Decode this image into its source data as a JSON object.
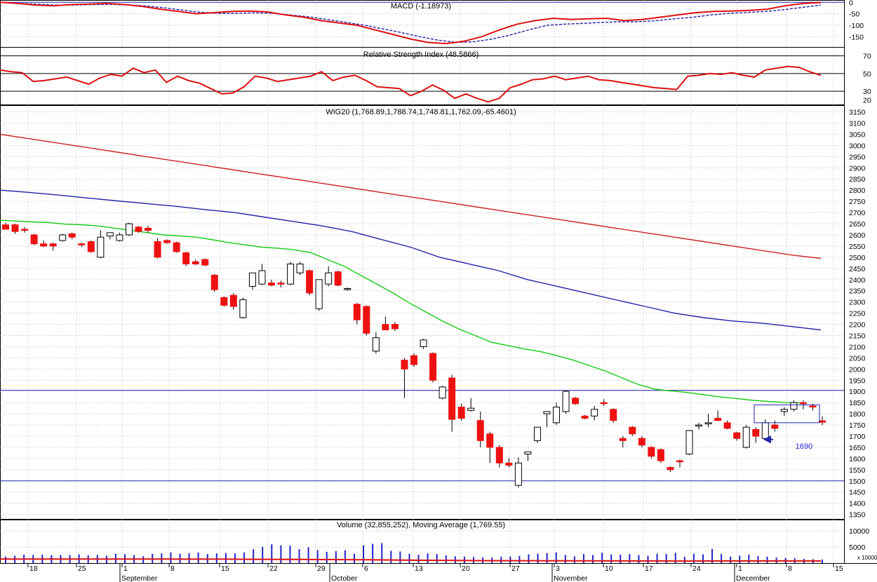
{
  "headers": {
    "macd": "MACD (-1.18973)",
    "rsi": "Relative Strength Index (48.5866)",
    "price": "WIG20 (1,768.89,1,788.74,1,748.81,1,762.09,-65.4601)",
    "volume": "Volume (32,855,252), Moving Average (1,769.55)"
  },
  "annotation_1690": "1690",
  "volume_unit": "x 10000",
  "colors": {
    "up": "#000000",
    "down": "#ee1111",
    "ma_short": "#11cc11",
    "ma_mid": "#2222aa",
    "ma_long": "#cc2222",
    "macd": "#dd1111",
    "signal": "#2222aa",
    "rsi": "#dd1111",
    "hline": "#2222aa",
    "volume": "#2222cc",
    "vol_avg": "#dd1111",
    "grid": "#bbbbbb"
  },
  "chart_data": {
    "type": "candlestick",
    "x_labels": [
      "18",
      "25",
      "1",
      "8",
      "15",
      "22",
      "29",
      "6",
      "13",
      "20",
      "27",
      "3",
      "10",
      "17",
      "24",
      "1",
      "8",
      "15"
    ],
    "month_labels": [
      "September",
      "October",
      "November",
      "December"
    ],
    "price_ticks": [
      1350,
      1400,
      1450,
      1500,
      1550,
      1600,
      1650,
      1700,
      1750,
      1800,
      1850,
      1900,
      1950,
      2000,
      2050,
      2100,
      2150,
      2200,
      2250,
      2300,
      2350,
      2400,
      2450,
      2500,
      2550,
      2600,
      2650,
      2700,
      2750,
      2800,
      2850,
      2900,
      2950,
      3000,
      3050,
      3100,
      3150
    ],
    "price_range": [
      1330,
      3180
    ],
    "horizontal_levels": [
      1905,
      1500
    ],
    "rsi_ticks": [
      20,
      30,
      50,
      70
    ],
    "rsi_levels": [
      30,
      70
    ],
    "macd_ticks": [
      "0",
      "-50",
      "-100",
      "-150"
    ],
    "volume_ticks": [
      "10000",
      "5000"
    ],
    "candles": [
      {
        "o": 2645,
        "h": 2655,
        "l": 2625,
        "c": 2625
      },
      {
        "o": 2645,
        "h": 2650,
        "l": 2605,
        "c": 2615
      },
      {
        "o": 2625,
        "h": 2635,
        "l": 2610,
        "c": 2620
      },
      {
        "o": 2600,
        "h": 2605,
        "l": 2555,
        "c": 2560
      },
      {
        "o": 2560,
        "h": 2575,
        "l": 2545,
        "c": 2550
      },
      {
        "o": 2560,
        "h": 2565,
        "l": 2530,
        "c": 2550
      },
      {
        "o": 2575,
        "h": 2605,
        "l": 2570,
        "c": 2600
      },
      {
        "o": 2605,
        "h": 2610,
        "l": 2580,
        "c": 2590
      },
      {
        "o": 2560,
        "h": 2565,
        "l": 2545,
        "c": 2555
      },
      {
        "o": 2570,
        "h": 2575,
        "l": 2520,
        "c": 2525
      },
      {
        "o": 2500,
        "h": 2620,
        "l": 2495,
        "c": 2590
      },
      {
        "o": 2595,
        "h": 2610,
        "l": 2580,
        "c": 2610
      },
      {
        "o": 2575,
        "h": 2610,
        "l": 2570,
        "c": 2600
      },
      {
        "o": 2600,
        "h": 2655,
        "l": 2595,
        "c": 2650
      },
      {
        "o": 2635,
        "h": 2640,
        "l": 2610,
        "c": 2615
      },
      {
        "o": 2630,
        "h": 2640,
        "l": 2610,
        "c": 2620
      },
      {
        "o": 2570,
        "h": 2585,
        "l": 2495,
        "c": 2500
      },
      {
        "o": 2575,
        "h": 2580,
        "l": 2560,
        "c": 2565
      },
      {
        "o": 2565,
        "h": 2570,
        "l": 2520,
        "c": 2525
      },
      {
        "o": 2520,
        "h": 2525,
        "l": 2460,
        "c": 2470
      },
      {
        "o": 2480,
        "h": 2490,
        "l": 2465,
        "c": 2470
      },
      {
        "o": 2490,
        "h": 2495,
        "l": 2460,
        "c": 2465
      },
      {
        "o": 2420,
        "h": 2425,
        "l": 2345,
        "c": 2355
      },
      {
        "o": 2320,
        "h": 2325,
        "l": 2280,
        "c": 2285
      },
      {
        "o": 2330,
        "h": 2340,
        "l": 2265,
        "c": 2280
      },
      {
        "o": 2230,
        "h": 2320,
        "l": 2225,
        "c": 2310
      },
      {
        "o": 2370,
        "h": 2430,
        "l": 2355,
        "c": 2430
      },
      {
        "o": 2380,
        "h": 2470,
        "l": 2375,
        "c": 2440
      },
      {
        "o": 2385,
        "h": 2400,
        "l": 2370,
        "c": 2375
      },
      {
        "o": 2385,
        "h": 2395,
        "l": 2365,
        "c": 2380
      },
      {
        "o": 2380,
        "h": 2480,
        "l": 2375,
        "c": 2470
      },
      {
        "o": 2430,
        "h": 2480,
        "l": 2420,
        "c": 2470
      },
      {
        "o": 2440,
        "h": 2445,
        "l": 2330,
        "c": 2340
      },
      {
        "o": 2270,
        "h": 2400,
        "l": 2260,
        "c": 2400
      },
      {
        "o": 2380,
        "h": 2460,
        "l": 2370,
        "c": 2430
      },
      {
        "o": 2435,
        "h": 2440,
        "l": 2370,
        "c": 2375
      },
      {
        "o": 2360,
        "h": 2365,
        "l": 2350,
        "c": 2360
      },
      {
        "o": 2290,
        "h": 2295,
        "l": 2200,
        "c": 2220
      },
      {
        "o": 2280,
        "h": 2285,
        "l": 2150,
        "c": 2160
      },
      {
        "o": 2080,
        "h": 2165,
        "l": 2070,
        "c": 2140
      },
      {
        "o": 2200,
        "h": 2235,
        "l": 2175,
        "c": 2175
      },
      {
        "o": 2200,
        "h": 2210,
        "l": 2170,
        "c": 2180
      },
      {
        "o": 2040,
        "h": 2050,
        "l": 1870,
        "c": 2000
      },
      {
        "o": 2060,
        "h": 2070,
        "l": 2010,
        "c": 2020
      },
      {
        "o": 2100,
        "h": 2135,
        "l": 2090,
        "c": 2130
      },
      {
        "o": 2070,
        "h": 2075,
        "l": 1940,
        "c": 1950
      },
      {
        "o": 1870,
        "h": 1925,
        "l": 1865,
        "c": 1920
      },
      {
        "o": 1960,
        "h": 1975,
        "l": 1720,
        "c": 1775
      },
      {
        "o": 1830,
        "h": 1845,
        "l": 1770,
        "c": 1780
      },
      {
        "o": 1815,
        "h": 1870,
        "l": 1810,
        "c": 1825
      },
      {
        "o": 1770,
        "h": 1810,
        "l": 1650,
        "c": 1680
      },
      {
        "o": 1710,
        "h": 1720,
        "l": 1580,
        "c": 1650
      },
      {
        "o": 1650,
        "h": 1660,
        "l": 1560,
        "c": 1580
      },
      {
        "o": 1580,
        "h": 1600,
        "l": 1560,
        "c": 1570
      },
      {
        "o": 1480,
        "h": 1605,
        "l": 1470,
        "c": 1580
      },
      {
        "o": 1620,
        "h": 1630,
        "l": 1590,
        "c": 1630
      },
      {
        "o": 1680,
        "h": 1740,
        "l": 1670,
        "c": 1740
      },
      {
        "o": 1800,
        "h": 1810,
        "l": 1740,
        "c": 1810
      },
      {
        "o": 1760,
        "h": 1850,
        "l": 1750,
        "c": 1830
      },
      {
        "o": 1810,
        "h": 1905,
        "l": 1800,
        "c": 1900
      },
      {
        "o": 1870,
        "h": 1875,
        "l": 1840,
        "c": 1845
      },
      {
        "o": 1790,
        "h": 1795,
        "l": 1775,
        "c": 1780
      },
      {
        "o": 1790,
        "h": 1835,
        "l": 1770,
        "c": 1820
      },
      {
        "o": 1850,
        "h": 1865,
        "l": 1835,
        "c": 1845
      },
      {
        "o": 1820,
        "h": 1825,
        "l": 1760,
        "c": 1770
      },
      {
        "o": 1690,
        "h": 1700,
        "l": 1650,
        "c": 1680
      },
      {
        "o": 1740,
        "h": 1745,
        "l": 1700,
        "c": 1710
      },
      {
        "o": 1690,
        "h": 1700,
        "l": 1650,
        "c": 1660
      },
      {
        "o": 1650,
        "h": 1655,
        "l": 1600,
        "c": 1610
      },
      {
        "o": 1640,
        "h": 1645,
        "l": 1580,
        "c": 1590
      },
      {
        "o": 1560,
        "h": 1565,
        "l": 1540,
        "c": 1550
      },
      {
        "o": 1590,
        "h": 1595,
        "l": 1560,
        "c": 1585
      },
      {
        "o": 1620,
        "h": 1725,
        "l": 1615,
        "c": 1725
      },
      {
        "o": 1745,
        "h": 1760,
        "l": 1730,
        "c": 1750
      },
      {
        "o": 1755,
        "h": 1800,
        "l": 1740,
        "c": 1760
      },
      {
        "o": 1780,
        "h": 1815,
        "l": 1770,
        "c": 1770
      },
      {
        "o": 1760,
        "h": 1770,
        "l": 1730,
        "c": 1735
      },
      {
        "o": 1715,
        "h": 1720,
        "l": 1680,
        "c": 1690
      },
      {
        "o": 1650,
        "h": 1750,
        "l": 1645,
        "c": 1740
      },
      {
        "o": 1730,
        "h": 1740,
        "l": 1670,
        "c": 1700
      },
      {
        "o": 1690,
        "h": 1775,
        "l": 1685,
        "c": 1760
      },
      {
        "o": 1750,
        "h": 1770,
        "l": 1720,
        "c": 1735
      },
      {
        "o": 1810,
        "h": 1830,
        "l": 1790,
        "c": 1820
      },
      {
        "o": 1820,
        "h": 1860,
        "l": 1810,
        "c": 1850
      },
      {
        "o": 1850,
        "h": 1860,
        "l": 1820,
        "c": 1845
      },
      {
        "o": 1835,
        "h": 1845,
        "l": 1815,
        "c": 1830
      },
      {
        "o": 1768.89,
        "h": 1788.74,
        "l": 1748.81,
        "c": 1762.09
      }
    ],
    "ma_short": [
      2665,
      2662,
      2658,
      2655,
      2648,
      2645,
      2640,
      2630,
      2620,
      2610,
      2600,
      2595,
      2590,
      2578,
      2565,
      2555,
      2545,
      2540,
      2533,
      2520,
      2490,
      2460,
      2420,
      2380,
      2340,
      2295,
      2255,
      2215,
      2180,
      2150,
      2120,
      2105,
      2090,
      2078,
      2060,
      2040,
      2015,
      1990,
      1960,
      1930,
      1910,
      1902,
      1895,
      1885,
      1875,
      1868,
      1860,
      1855,
      1850,
      1850
    ],
    "ma_mid": [
      2800,
      2790,
      2778,
      2765,
      2752,
      2740,
      2728,
      2713,
      2700,
      2680,
      2660,
      2640,
      2615,
      2580,
      2545,
      2500,
      2470,
      2440,
      2400,
      2370,
      2340,
      2310,
      2280,
      2250,
      2230,
      2215,
      2205,
      2190,
      2175
    ],
    "ma_long": [
      3050,
      3030,
      3010,
      2990,
      2970,
      2950,
      2930,
      2910,
      2890,
      2870,
      2850,
      2830,
      2810,
      2790,
      2770,
      2750,
      2730,
      2710,
      2690,
      2670,
      2650,
      2630,
      2610,
      2590,
      2570,
      2550,
      2530,
      2510,
      2495
    ],
    "macd_values": [
      0,
      -5,
      -12,
      -15,
      -10,
      -8,
      -5,
      -10,
      -18,
      -30,
      -40,
      -50,
      -45,
      -40,
      -38,
      -42,
      -55,
      -65,
      -80,
      -90,
      -100,
      -120,
      -140,
      -160,
      -175,
      -180,
      -170,
      -150,
      -120,
      -95,
      -80,
      -70,
      -75,
      -72,
      -70,
      -80,
      -75,
      -65,
      -55,
      -45,
      -40,
      -38,
      -35,
      -30,
      -15,
      -5,
      -1
    ],
    "signal_values": [
      0,
      -4,
      -8,
      -12,
      -12,
      -10,
      -9,
      -11,
      -16,
      -24,
      -34,
      -44,
      -48,
      -48,
      -46,
      -48,
      -56,
      -64,
      -76,
      -88,
      -100,
      -116,
      -132,
      -150,
      -165,
      -175,
      -172,
      -160,
      -142,
      -120,
      -100,
      -95,
      -92,
      -88,
      -85,
      -85,
      -80,
      -72,
      -65,
      -55,
      -48,
      -44,
      -40,
      -32,
      -22,
      -12
    ],
    "rsi_values": [
      54,
      52,
      51,
      41,
      42,
      44,
      46,
      42,
      38,
      45,
      49,
      47,
      56,
      51,
      54,
      40,
      47,
      42,
      39,
      33,
      27,
      28,
      35,
      47,
      45,
      41,
      43,
      45,
      47,
      52,
      42,
      46,
      48,
      42,
      35,
      34,
      33,
      25,
      30,
      37,
      31,
      22,
      27,
      22,
      18,
      22,
      34,
      38,
      43,
      44,
      47,
      43,
      45,
      47,
      43,
      42,
      40,
      38,
      36,
      34,
      33,
      32,
      47,
      48,
      50,
      49,
      51,
      48,
      46,
      54,
      56,
      58,
      57,
      52,
      48
    ],
    "volumes": [
      200,
      230,
      260,
      250,
      260,
      240,
      250,
      250,
      270,
      240,
      250,
      230,
      290,
      270,
      250,
      210,
      290,
      300,
      330,
      290,
      310,
      330,
      280,
      300,
      310,
      300,
      330,
      430,
      500,
      580,
      550,
      540,
      430,
      490,
      400,
      350,
      370,
      400,
      290,
      550,
      600,
      620,
      380,
      360,
      290,
      260,
      300,
      280,
      240,
      210,
      200,
      190,
      180,
      170,
      200,
      200,
      220,
      270,
      290,
      310,
      330,
      250,
      210,
      280,
      250,
      320,
      270,
      260,
      280,
      250,
      230,
      290,
      280,
      320,
      190,
      290,
      270,
      440,
      280,
      200,
      230,
      260,
      220,
      200,
      170,
      160,
      150,
      130,
      120,
      110
    ],
    "vol_avg": [
      1250,
      1250,
      1245,
      1245,
      1240,
      1240,
      1238,
      1238,
      1235,
      1232,
      1228,
      1220,
      1212,
      1200,
      1185,
      1160,
      1135,
      1110,
      1090,
      1060,
      1030,
      980,
      930,
      880,
      840,
      810,
      770,
      750,
      740,
      730,
      720,
      700,
      690,
      680,
      670,
      660,
      650,
      640,
      640,
      650,
      650,
      660,
      660,
      660,
      660,
      660
    ]
  }
}
